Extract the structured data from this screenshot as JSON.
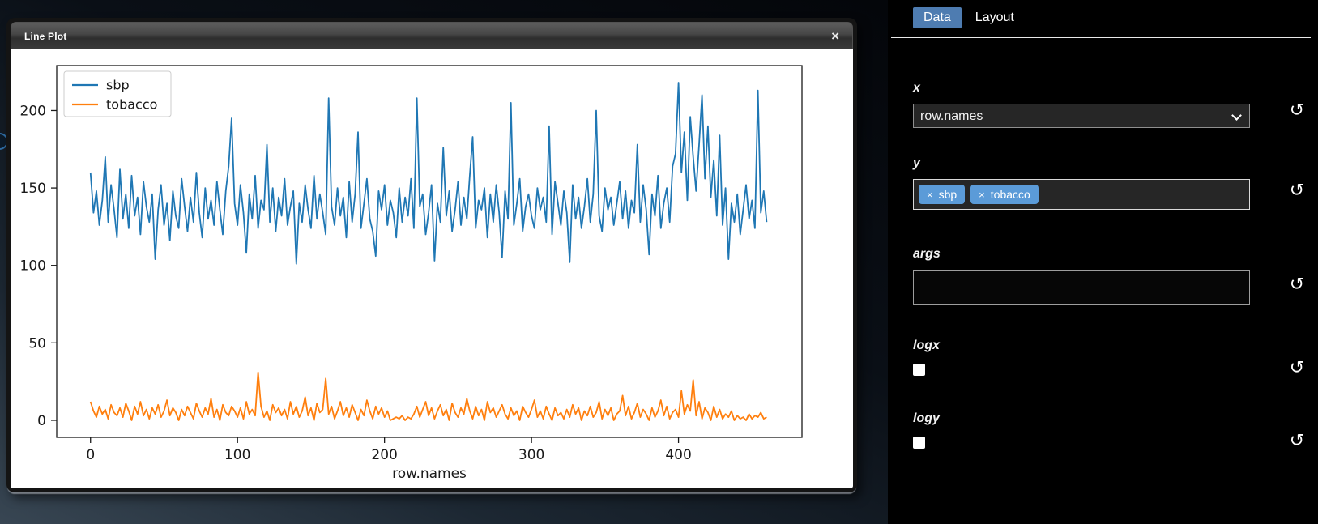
{
  "window": {
    "title": "Line Plot",
    "close_label": "×"
  },
  "chart_data": {
    "type": "line",
    "title": "",
    "xlabel": "row.names",
    "ylabel": "",
    "xlim": [
      -23,
      484
    ],
    "ylim": [
      -11,
      229
    ],
    "x_ticks": [
      0,
      100,
      200,
      300,
      400
    ],
    "y_ticks": [
      0,
      50,
      100,
      150,
      200
    ],
    "grid": false,
    "legend_position": "upper-left",
    "x_start": 0,
    "x_step": 2,
    "series": [
      {
        "name": "sbp",
        "color": "#1f77b4",
        "values": [
          160,
          134,
          148,
          126,
          142,
          170,
          128,
          152,
          136,
          118,
          162,
          130,
          146,
          124,
          158,
          132,
          144,
          120,
          154,
          138,
          128,
          146,
          104,
          136,
          152,
          126,
          140,
          116,
          148,
          132,
          124,
          156,
          138,
          122,
          144,
          128,
          160,
          134,
          118,
          150,
          130,
          142,
          126,
          154,
          136,
          120,
          148,
          164,
          195,
          140,
          126,
          152,
          134,
          108,
          146,
          130,
          158,
          124,
          142,
          136,
          178,
          128,
          150,
          122,
          144,
          132,
          156,
          126,
          138,
          148,
          101,
          140,
          128,
          152,
          136,
          124,
          158,
          130,
          146,
          134,
          120,
          208,
          138,
          126,
          150,
          132,
          144,
          118,
          154,
          128,
          146,
          186,
          124,
          140,
          156,
          130,
          122,
          106,
          148,
          136,
          152,
          126,
          142,
          134,
          118,
          150,
          128,
          144,
          132,
          156,
          124,
          208,
          138,
          146,
          120,
          134,
          152,
          103,
          140,
          128,
          176,
          132,
          148,
          122,
          136,
          154,
          126,
          144,
          130,
          158,
          183,
          124,
          142,
          136,
          150,
          118,
          146,
          128,
          152,
          134,
          105,
          148,
          130,
          205,
          126,
          140,
          156,
          122,
          138,
          146,
          132,
          124,
          150,
          136,
          144,
          128,
          190,
          120,
          154,
          140,
          126,
          148,
          134,
          102,
          152,
          130,
          144,
          124,
          138,
          156,
          128,
          146,
          200,
          132,
          122,
          150,
          136,
          144,
          126,
          140,
          154,
          130,
          148,
          124,
          142,
          134,
          178,
          128,
          152,
          136,
          107,
          146,
          132,
          158,
          124,
          140,
          150,
          128,
          164,
          172,
          218,
          160,
          186,
          142,
          196,
          170,
          148,
          178,
          210,
          156,
          190,
          144,
          168,
          132,
          184,
          126,
          150,
          104,
          140,
          128,
          146,
          120,
          136,
          152,
          130,
          142,
          124,
          213,
          134,
          148,
          128
        ]
      },
      {
        "name": "tobacco",
        "color": "#ff7f0e",
        "values": [
          12,
          6,
          2,
          9,
          4,
          7,
          1,
          10,
          5,
          3,
          8,
          2,
          11,
          6,
          0,
          9,
          4,
          12,
          3,
          7,
          1,
          8,
          4,
          10,
          2,
          6,
          13,
          3,
          8,
          5,
          0,
          7,
          3,
          9,
          5,
          1,
          11,
          6,
          2,
          8,
          4,
          14,
          2,
          7,
          0,
          10,
          5,
          3,
          9,
          6,
          2,
          8,
          1,
          12,
          4,
          7,
          3,
          31,
          9,
          2,
          6,
          0,
          10,
          5,
          8,
          3,
          7,
          1,
          12,
          4,
          9,
          2,
          6,
          15,
          3,
          8,
          0,
          11,
          5,
          7,
          27,
          4,
          9,
          1,
          6,
          12,
          3,
          8,
          2,
          10,
          5,
          0,
          7,
          3,
          13,
          6,
          1,
          9,
          4,
          8,
          2,
          6,
          0,
          1,
          2,
          1,
          3,
          0,
          2,
          1,
          4,
          9,
          2,
          7,
          12,
          3,
          8,
          1,
          6,
          10,
          3,
          7,
          0,
          11,
          5,
          2,
          8,
          4,
          14,
          6,
          1,
          9,
          3,
          7,
          0,
          12,
          5,
          8,
          2,
          6,
          10,
          4,
          1,
          8,
          3,
          6,
          0,
          9,
          5,
          2,
          7,
          13,
          2,
          6,
          1,
          9,
          4,
          0,
          8,
          3,
          5,
          1,
          7,
          2,
          10,
          4,
          8,
          0,
          6,
          3,
          9,
          2,
          5,
          12,
          1,
          7,
          3,
          8,
          0,
          4,
          6,
          16,
          3,
          9,
          1,
          5,
          11,
          2,
          7,
          4,
          0,
          8,
          2,
          6,
          13,
          3,
          9,
          1,
          5,
          7,
          2,
          19,
          4,
          10,
          6,
          26,
          3,
          12,
          1,
          8,
          5,
          0,
          9,
          2,
          7,
          1,
          4,
          2,
          6,
          0,
          3,
          1,
          2,
          0,
          4,
          1,
          3,
          2,
          5,
          1,
          2
        ]
      }
    ]
  },
  "panel": {
    "tabs": [
      {
        "label": "Data",
        "active": true
      },
      {
        "label": "Layout",
        "active": false
      }
    ],
    "reset_icon": "↺",
    "fields": {
      "x": {
        "label": "x",
        "value": "row.names"
      },
      "y": {
        "label": "y",
        "tag_remove": "×",
        "tags": [
          "sbp",
          "tobacco"
        ]
      },
      "args": {
        "label": "args",
        "value": ""
      },
      "logx": {
        "label": "logx",
        "checked": false
      },
      "logy": {
        "label": "logy",
        "checked": false
      }
    }
  },
  "colors": {
    "tab_active": "#4e7cb1",
    "tag": "#5b9bd8",
    "sbp_line": "#1f77b4",
    "tobacco_line": "#ff7f0e"
  }
}
